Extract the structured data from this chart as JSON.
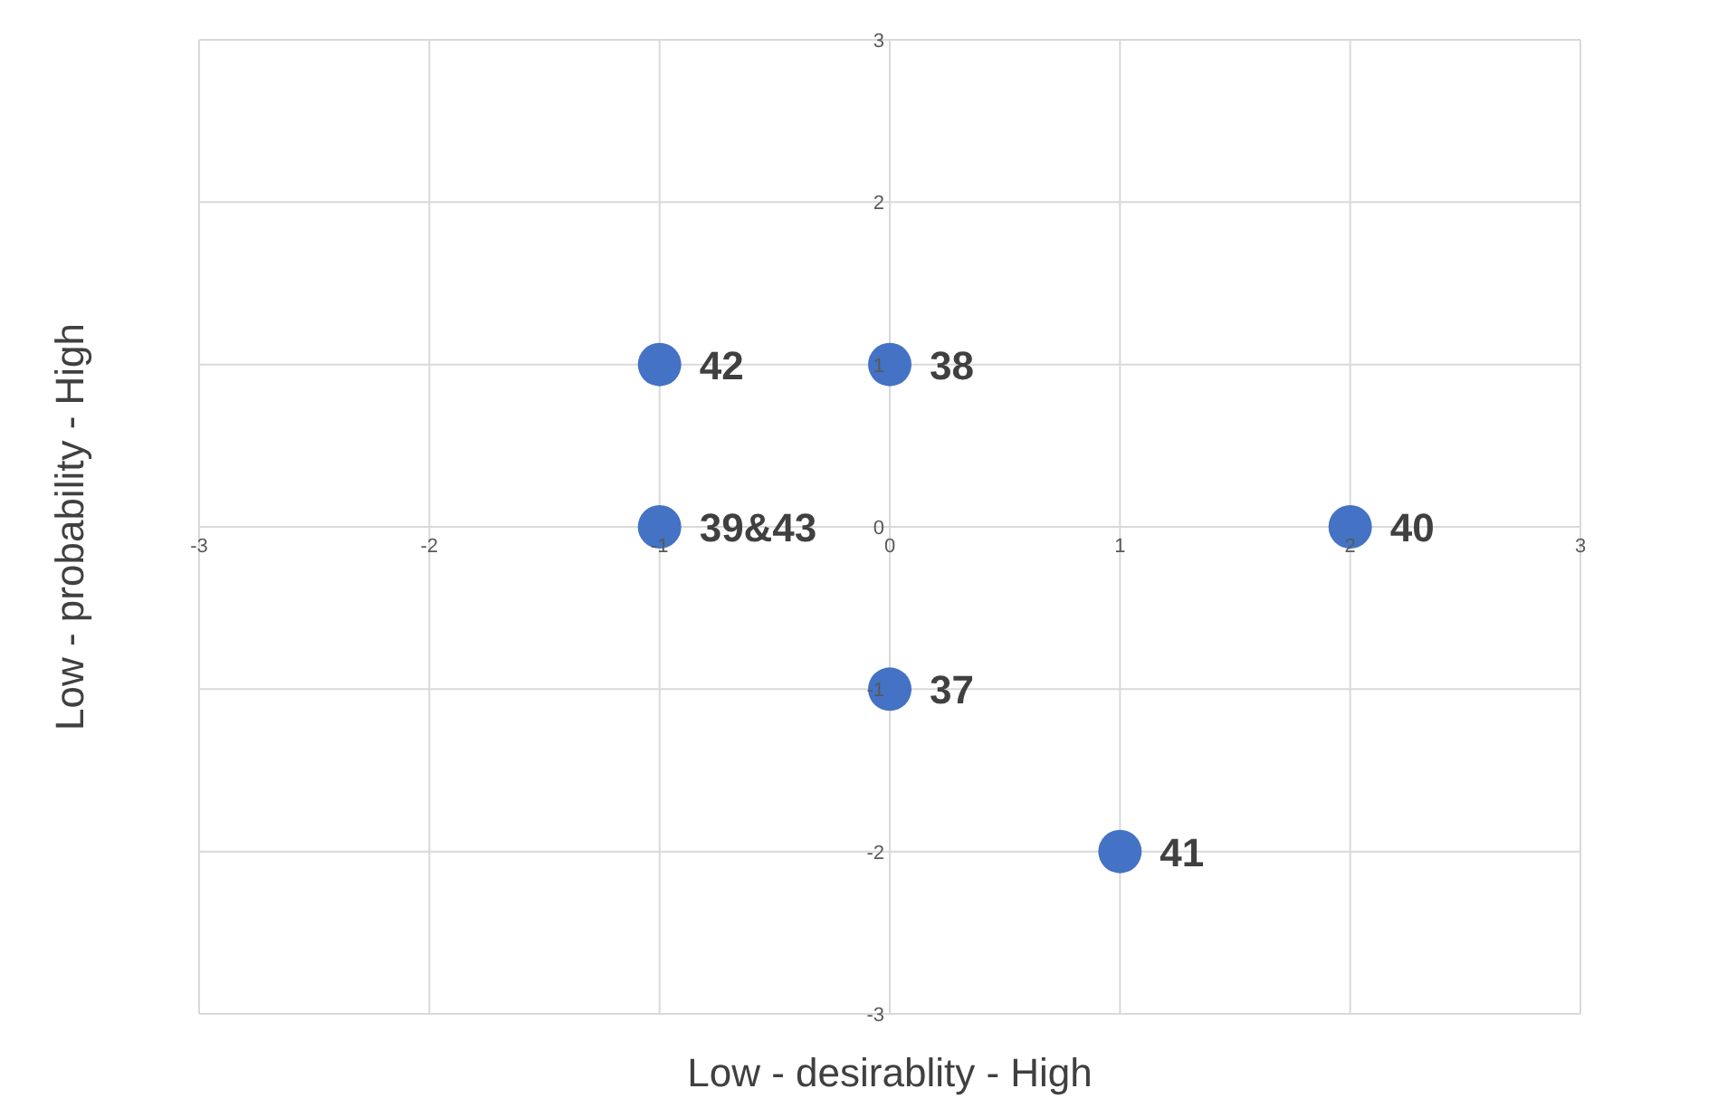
{
  "chart_data": {
    "type": "scatter",
    "xlabel": "Low - desirablity - High",
    "ylabel": "Low - probability - High",
    "x": [
      -1,
      0,
      -1,
      2,
      0,
      1
    ],
    "series": [
      {
        "color": "#4472c4",
        "values": [
          1,
          1,
          0,
          0,
          -1,
          -2
        ]
      }
    ],
    "xlim": [
      -3,
      3
    ],
    "xticks": [
      -3,
      -2,
      -1,
      0,
      1,
      2,
      3
    ],
    "ylim": [
      -3,
      3
    ],
    "yticks": [
      -3,
      -2,
      -1,
      0,
      1,
      2,
      3
    ],
    "grid": true,
    "marker": "circle",
    "annotations": [
      {
        "text": "42",
        "x": -1,
        "y": 1
      },
      {
        "text": "38",
        "x": 0,
        "y": 1
      },
      {
        "text": "39&43",
        "x": -1,
        "y": 0
      },
      {
        "text": "40",
        "x": 2,
        "y": 0
      },
      {
        "text": "37",
        "x": 0,
        "y": -1
      },
      {
        "text": "41",
        "x": 1,
        "y": -2
      }
    ]
  }
}
